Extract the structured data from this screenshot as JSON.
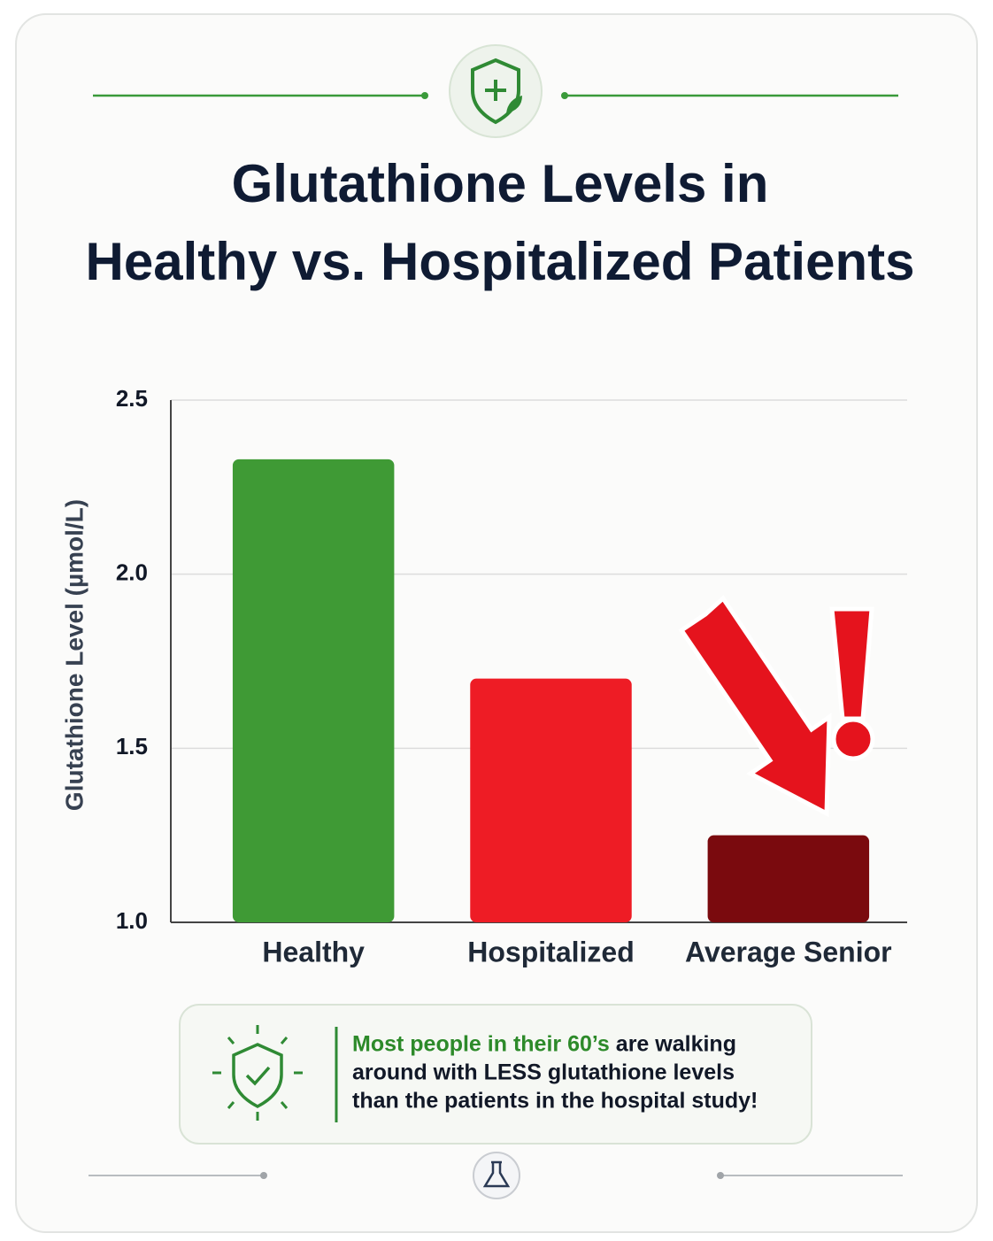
{
  "chart_data": {
    "type": "bar",
    "title": [
      "Glutathione Levels in",
      "Healthy vs. Hospitalized Patients"
    ],
    "y_label": "Glutathione Level (µmol/L)",
    "categories": [
      "Healthy",
      "Hospitalized",
      "Average Senior"
    ],
    "values": [
      2.33,
      1.7,
      1.25
    ],
    "colors": [
      "#3f9a35",
      "#ee1c25",
      "#7a0a0e"
    ],
    "ylim": [
      1,
      2.5
    ],
    "yticks": [
      {
        "value": 1,
        "label": "1.0"
      },
      1.5,
      {
        "value": 2,
        "label": "2.0"
      },
      2.5
    ],
    "grid": true,
    "callout": {
      "highlight": "Most people in their 60’s",
      "lines": [
        "are walking",
        "around with LESS glutathione levels",
        "than the patients in the hospital study!"
      ]
    }
  }
}
